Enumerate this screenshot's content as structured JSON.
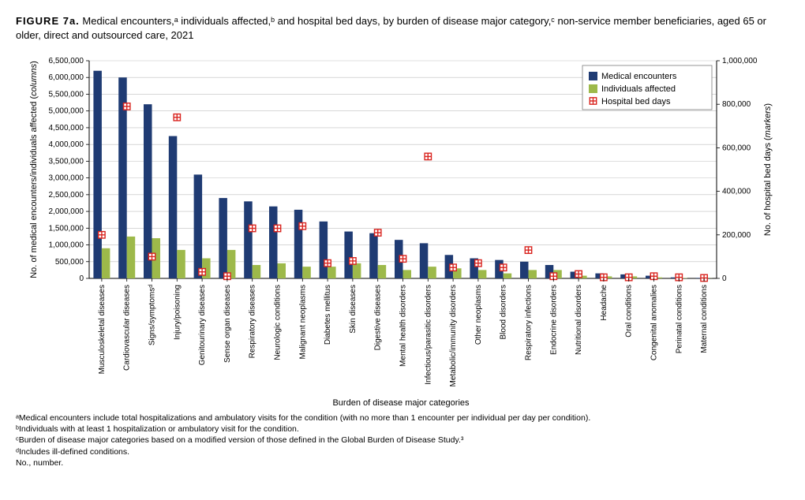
{
  "title_prefix": "FIGURE 7a.",
  "title_rest": " Medical encounters,ᵃ individuals affected,ᵇ and hospital bed days, by burden of disease major category,ᶜ non-service member beneficiaries, aged 65 or older, direct and outsourced care, 2021",
  "chart": {
    "type": "bar+marker",
    "background_color": "#ffffff",
    "grid_color": "#bfbfbf",
    "colors": {
      "encounters": "#1f3b73",
      "individuals": "#9db94a",
      "marker_fill": "#ffffff",
      "marker_stroke": "#d9241f"
    },
    "y_left": {
      "label": "No. of medical encounters/individuals affected (columns)",
      "min": 0,
      "max": 6500000,
      "step": 500000,
      "ticks": [
        "0",
        "500,000",
        "1,000,000",
        "1,500,000",
        "2,000,000",
        "2,500,000",
        "3,000,000",
        "3,500,000",
        "4,000,000",
        "4,500,000",
        "5,000,000",
        "5,500,000",
        "6,000,000",
        "6,500,000"
      ]
    },
    "y_right": {
      "label": "No. of hospital bed days (markers)",
      "min": 0,
      "max": 1000000,
      "step": 200000,
      "ticks": [
        "0",
        "200,000",
        "400,000",
        "600,000",
        "800,000",
        "1,000,000"
      ]
    },
    "x_label": "Burden of disease major categories",
    "legend": {
      "items": [
        {
          "label": "Medical encounters",
          "kind": "bar",
          "color": "#1f3b73"
        },
        {
          "label": "Individuals affected",
          "kind": "bar",
          "color": "#9db94a"
        },
        {
          "label": "Hospital bed days",
          "kind": "marker"
        }
      ]
    },
    "categories": [
      "Musculoskeletal diseases",
      "Cardiovascular diseases",
      "Signs/symptomsᵈ",
      "Injury/poisoning",
      "Genitourinary diseases",
      "Sense organ diseases",
      "Respiratory diseases",
      "Neurologic conditions",
      "Malignant neoplasms",
      "Diabetes mellitus",
      "Skin diseases",
      "Digestive diseases",
      "Mental health disorders",
      "Infectious/parasitic disorders",
      "Metabolic/immunity disorders",
      "Other neoplasms",
      "Blood disorders",
      "Respiratory infections",
      "Endocrine disorders",
      "Nutritional disorders",
      "Headache",
      "Oral conditions",
      "Congenital anomalies",
      "Perinatal conditions",
      "Maternal conditions"
    ],
    "series": {
      "encounters": [
        6200000,
        6000000,
        5200000,
        4250000,
        3100000,
        2400000,
        2300000,
        2150000,
        2050000,
        1700000,
        1400000,
        1350000,
        1150000,
        1050000,
        700000,
        600000,
        550000,
        500000,
        400000,
        200000,
        150000,
        120000,
        80000,
        30000,
        15000
      ],
      "individuals": [
        900000,
        1250000,
        1200000,
        850000,
        600000,
        850000,
        400000,
        450000,
        350000,
        350000,
        450000,
        400000,
        250000,
        350000,
        300000,
        250000,
        150000,
        250000,
        250000,
        80000,
        60000,
        60000,
        30000,
        10000,
        5000
      ],
      "bed_days": [
        200000,
        790000,
        100000,
        740000,
        30000,
        10000,
        230000,
        230000,
        240000,
        70000,
        80000,
        210000,
        90000,
        560000,
        50000,
        70000,
        50000,
        130000,
        10000,
        20000,
        5000,
        5000,
        10000,
        5000,
        2000
      ]
    }
  },
  "footnotes": [
    "ᵃMedical encounters include total hospitalizations and ambulatory visits for the condition (with no more than 1 encounter per individual per day per condition).",
    "ᵇIndividuals with at least 1 hospitalization or ambulatory visit for the condition.",
    "ᶜBurden of disease major categories based on a modified version of those defined in the Global Burden of Disease Study.³",
    "ᵈIncludes ill-defined conditions.",
    "No., number."
  ]
}
